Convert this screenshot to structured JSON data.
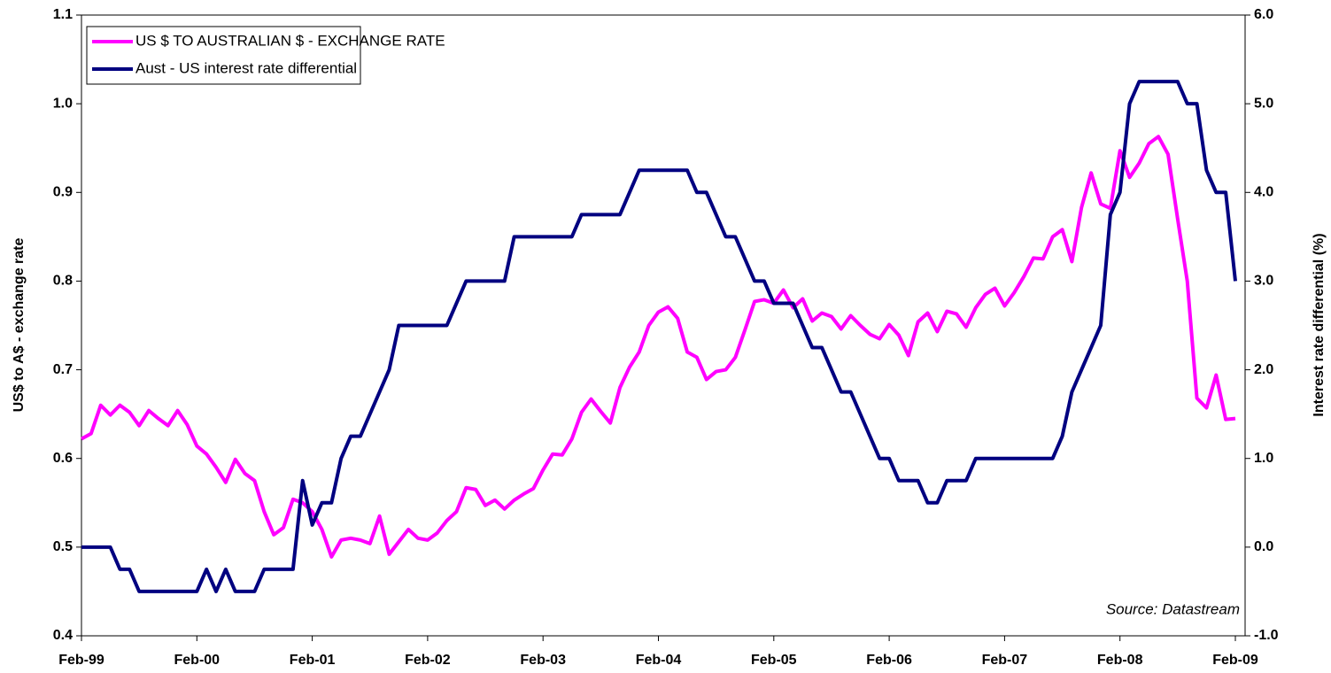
{
  "chart_data": {
    "type": "line",
    "y_label": "US$ to A$ - exchange rate",
    "y2_label": "Interest rate differential (%)",
    "annotation": "Source: Datastream",
    "legend": "upper left",
    "grid": false,
    "categories": [
      "Feb-99",
      null,
      null,
      null,
      null,
      null,
      null,
      null,
      null,
      null,
      null,
      null,
      "Feb-00",
      null,
      null,
      null,
      null,
      null,
      null,
      null,
      null,
      null,
      null,
      null,
      "Feb-01",
      null,
      null,
      null,
      null,
      null,
      null,
      null,
      null,
      null,
      null,
      null,
      "Feb-02",
      null,
      null,
      null,
      null,
      null,
      null,
      null,
      null,
      null,
      null,
      null,
      "Feb-03",
      null,
      null,
      null,
      null,
      null,
      null,
      null,
      null,
      null,
      null,
      null,
      "Feb-04",
      null,
      null,
      null,
      null,
      null,
      null,
      null,
      null,
      null,
      null,
      null,
      "Feb-05",
      null,
      null,
      null,
      null,
      null,
      null,
      null,
      null,
      null,
      null,
      null,
      "Feb-06",
      null,
      null,
      null,
      null,
      null,
      null,
      null,
      null,
      null,
      null,
      null,
      "Feb-07",
      null,
      null,
      null,
      null,
      null,
      null,
      null,
      null,
      null,
      null,
      null,
      "Feb-08",
      null,
      null,
      null,
      null,
      null,
      null,
      null,
      null,
      null,
      null,
      null,
      "Feb-09"
    ],
    "ylim": [
      0.4,
      1.1
    ],
    "yticks": [
      0.4,
      0.5,
      0.6,
      0.7,
      0.8,
      0.9,
      {
        "value": 1,
        "label": "1.0"
      },
      1.1
    ],
    "y2lim": [
      -1,
      6
    ],
    "y2ticks": [
      {
        "value": -1,
        "label": "-1.0"
      },
      {
        "value": 0,
        "label": "0.0"
      },
      {
        "value": 1,
        "label": "1.0"
      },
      {
        "value": 2,
        "label": "2.0"
      },
      {
        "value": 3,
        "label": "3.0"
      },
      {
        "value": 4,
        "label": "4.0"
      },
      {
        "value": 5,
        "label": "5.0"
      },
      {
        "value": 6,
        "label": "6.0"
      }
    ],
    "series": [
      {
        "name": "US $ TO AUSTRALIAN $ - EXCHANGE RATE",
        "color": "#ff00ff",
        "axis": "y",
        "values": [
          0.622,
          0.628,
          0.66,
          0.649,
          0.66,
          0.652,
          0.637,
          0.654,
          0.645,
          0.637,
          0.654,
          0.638,
          0.614,
          0.605,
          0.59,
          0.573,
          0.599,
          0.583,
          0.575,
          0.54,
          0.514,
          0.522,
          0.554,
          0.55,
          0.54,
          0.52,
          0.489,
          0.508,
          0.51,
          0.508,
          0.504,
          0.535,
          0.492,
          0.506,
          0.52,
          0.51,
          0.508,
          0.516,
          0.53,
          0.54,
          0.567,
          0.565,
          0.547,
          0.553,
          0.543,
          0.553,
          0.56,
          0.566,
          0.587,
          0.605,
          0.604,
          0.622,
          0.652,
          0.667,
          0.653,
          0.64,
          0.68,
          0.703,
          0.72,
          0.75,
          0.765,
          0.771,
          0.758,
          0.72,
          0.714,
          0.689,
          0.698,
          0.7,
          0.714,
          0.745,
          0.777,
          0.779,
          0.775,
          0.79,
          0.77,
          0.78,
          0.755,
          0.764,
          0.76,
          0.746,
          0.761,
          0.75,
          0.74,
          0.735,
          0.751,
          0.739,
          0.716,
          0.754,
          0.764,
          0.743,
          0.766,
          0.763,
          0.748,
          0.77,
          0.785,
          0.792,
          0.772,
          0.787,
          0.805,
          0.826,
          0.825,
          0.85,
          0.858,
          0.822,
          0.883,
          0.922,
          0.887,
          0.882,
          0.947,
          0.917,
          0.933,
          0.955,
          0.963,
          0.943,
          0.87,
          0.8,
          0.668,
          0.657,
          0.694,
          0.644,
          0.645
        ]
      },
      {
        "name": "Aust - US interest rate differential",
        "color": "#000080",
        "axis": "y2",
        "values": [
          0,
          0,
          0,
          0,
          -0.25,
          -0.25,
          -0.5,
          -0.5,
          -0.5,
          -0.5,
          -0.5,
          -0.5,
          -0.5,
          -0.25,
          -0.5,
          -0.25,
          -0.5,
          -0.5,
          -0.5,
          -0.25,
          -0.25,
          -0.25,
          -0.25,
          0.75,
          0.25,
          0.5,
          0.5,
          1.0,
          1.25,
          1.25,
          1.5,
          1.75,
          2.0,
          2.5,
          2.5,
          2.5,
          2.5,
          2.5,
          2.5,
          2.75,
          3.0,
          3.0,
          3.0,
          3.0,
          3.0,
          3.5,
          3.5,
          3.5,
          3.5,
          3.5,
          3.5,
          3.5,
          3.75,
          3.75,
          3.75,
          3.75,
          3.75,
          4.0,
          4.25,
          4.25,
          4.25,
          4.25,
          4.25,
          4.25,
          4.0,
          4.0,
          3.75,
          3.5,
          3.5,
          3.25,
          3.0,
          3.0,
          2.75,
          2.75,
          2.75,
          2.5,
          2.25,
          2.25,
          2.0,
          1.75,
          1.75,
          1.5,
          1.25,
          1.0,
          1.0,
          0.75,
          0.75,
          0.75,
          0.5,
          0.5,
          0.75,
          0.75,
          0.75,
          1.0,
          1.0,
          1.0,
          1.0,
          1.0,
          1.0,
          1.0,
          1.0,
          1.0,
          1.25,
          1.75,
          2.0,
          2.25,
          2.5,
          3.75,
          4.0,
          5.0,
          5.25,
          5.25,
          5.25,
          5.25,
          5.25,
          5.0,
          5.0,
          4.25,
          4.0,
          4.0,
          3.0
        ]
      }
    ]
  }
}
